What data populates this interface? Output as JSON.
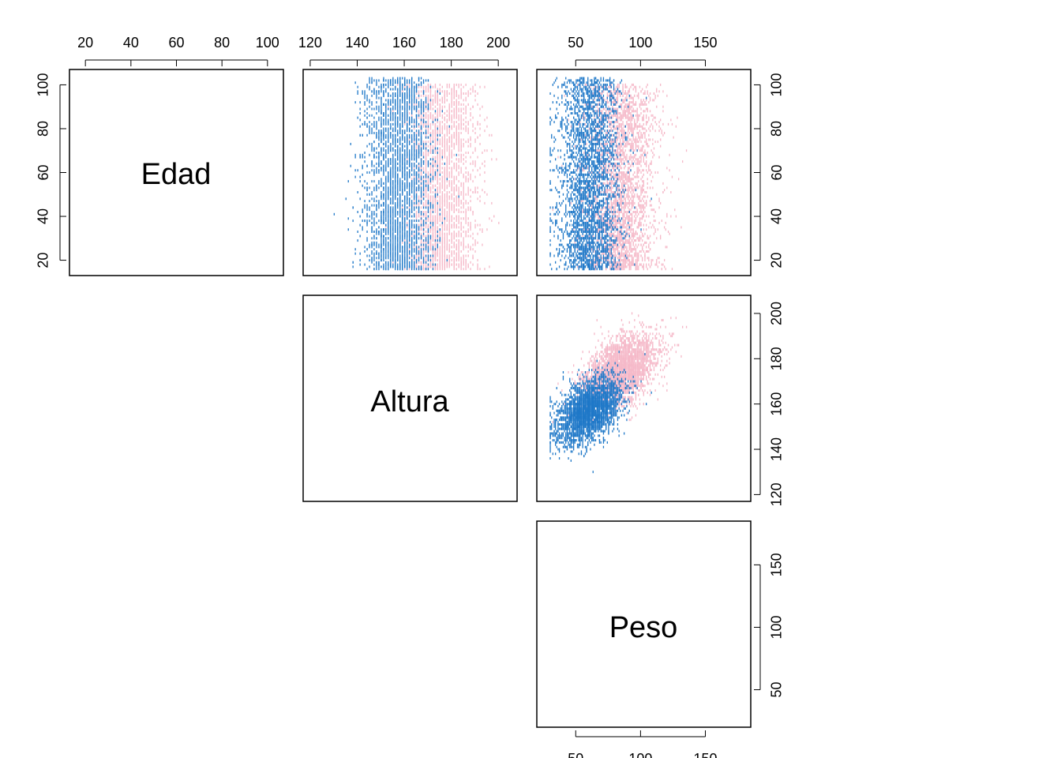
{
  "chart_data": {
    "type": "scatter",
    "title": "",
    "variables": [
      "Edad",
      "Altura",
      "Peso"
    ],
    "groups": [
      {
        "color": "#1f78c8"
      },
      {
        "color": "#f5b8c8"
      }
    ],
    "axes": {
      "Edad": {
        "range": [
          13,
          107
        ],
        "ticks": [
          20,
          40,
          60,
          80,
          100
        ]
      },
      "Altura": {
        "range": [
          117,
          208
        ],
        "ticks": [
          120,
          140,
          160,
          180,
          200
        ]
      },
      "Peso": {
        "range": [
          20,
          185
        ],
        "ticks": [
          50,
          100,
          150
        ]
      }
    },
    "panels": [
      {
        "x": "Altura",
        "y": "Edad"
      },
      {
        "x": "Peso",
        "y": "Edad"
      },
      {
        "x": "Peso",
        "y": "Altura"
      }
    ],
    "group_summary": [
      {
        "altura_mean": 157,
        "altura_sd": 7,
        "peso_mean": 60,
        "peso_sd": 12,
        "edad_range": [
          16,
          103
        ]
      },
      {
        "altura_mean": 175,
        "altura_sd": 8,
        "peso_mean": 85,
        "peso_sd": 14,
        "edad_range": [
          16,
          100
        ]
      }
    ],
    "grid": false,
    "legend": "none"
  }
}
